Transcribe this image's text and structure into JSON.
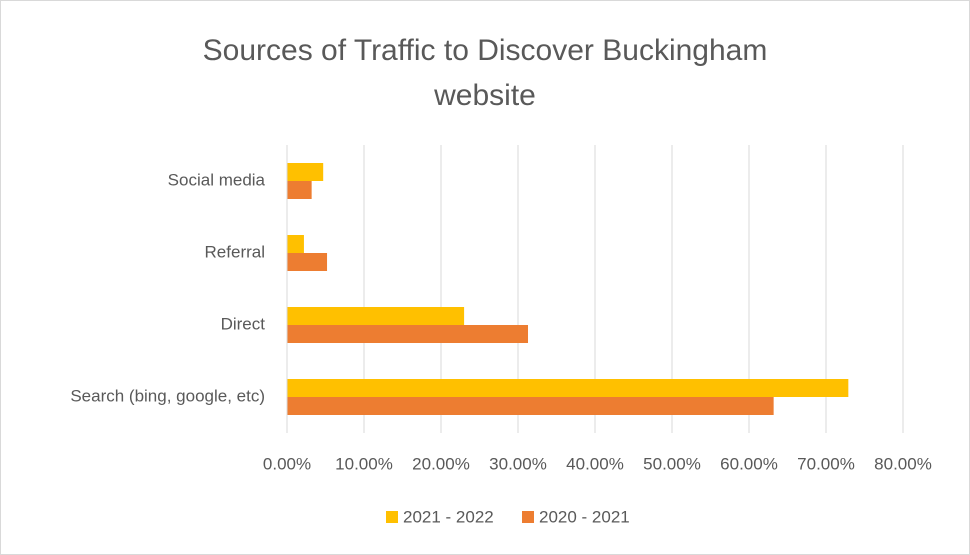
{
  "chart_data": {
    "type": "hbar",
    "title": "Sources of Traffic to Discover Buckingham website",
    "categories": [
      "Social media",
      "Referral",
      "Direct",
      "Search (bing, google, etc)"
    ],
    "series": [
      {
        "name": "2021 - 2022",
        "color": "#FFC000",
        "values": [
          4.7,
          2.2,
          23.0,
          72.9
        ]
      },
      {
        "name": "2020 - 2021",
        "color": "#ED7D31",
        "values": [
          3.2,
          5.2,
          31.3,
          63.2
        ]
      }
    ],
    "xlim": [
      0,
      80
    ],
    "xticks": [
      {
        "value": 0,
        "label": "0.00%"
      },
      {
        "value": 10,
        "label": "10.00%"
      },
      {
        "value": 20,
        "label": "20.00%"
      },
      {
        "value": 30,
        "label": "30.00%"
      },
      {
        "value": 40,
        "label": "40.00%"
      },
      {
        "value": 50,
        "label": "50.00%"
      },
      {
        "value": 60,
        "label": "60.00%"
      },
      {
        "value": 70,
        "label": "70.00%"
      },
      {
        "value": 80,
        "label": "80.00%"
      }
    ],
    "grid": true,
    "legend": "bottom"
  }
}
